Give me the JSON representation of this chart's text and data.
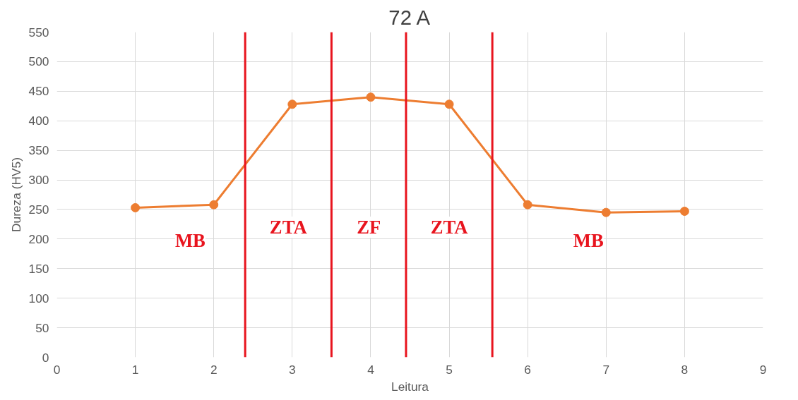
{
  "chart_data": {
    "type": "line",
    "title": "72 A",
    "xlabel": "Leitura",
    "ylabel": "Dureza (HV5)",
    "x": [
      1,
      2,
      3,
      4,
      5,
      6,
      7,
      8
    ],
    "series": [
      {
        "color": "#ed7d31",
        "values": [
          253,
          258,
          428,
          440,
          428,
          258,
          245,
          247
        ]
      }
    ],
    "xlim": [
      0,
      9
    ],
    "xticks": [
      0,
      1,
      2,
      3,
      4,
      5,
      6,
      7,
      8,
      9
    ],
    "ylim": [
      0,
      550
    ],
    "yticks": [
      0,
      50,
      100,
      150,
      200,
      250,
      300,
      350,
      400,
      450,
      500,
      550
    ],
    "grid": true,
    "marker": "circle",
    "line_style": "solid",
    "ref_lines": [
      {
        "axis": "x",
        "value": 2.4,
        "color": "#e8141e"
      },
      {
        "axis": "x",
        "value": 3.5,
        "color": "#e8141e"
      },
      {
        "axis": "x",
        "value": 4.45,
        "color": "#e8141e"
      },
      {
        "axis": "x",
        "value": 5.55,
        "color": "#e8141e"
      }
    ],
    "annotations": [
      "MB",
      "ZTA",
      "ZF",
      "ZTA",
      "MB"
    ]
  }
}
